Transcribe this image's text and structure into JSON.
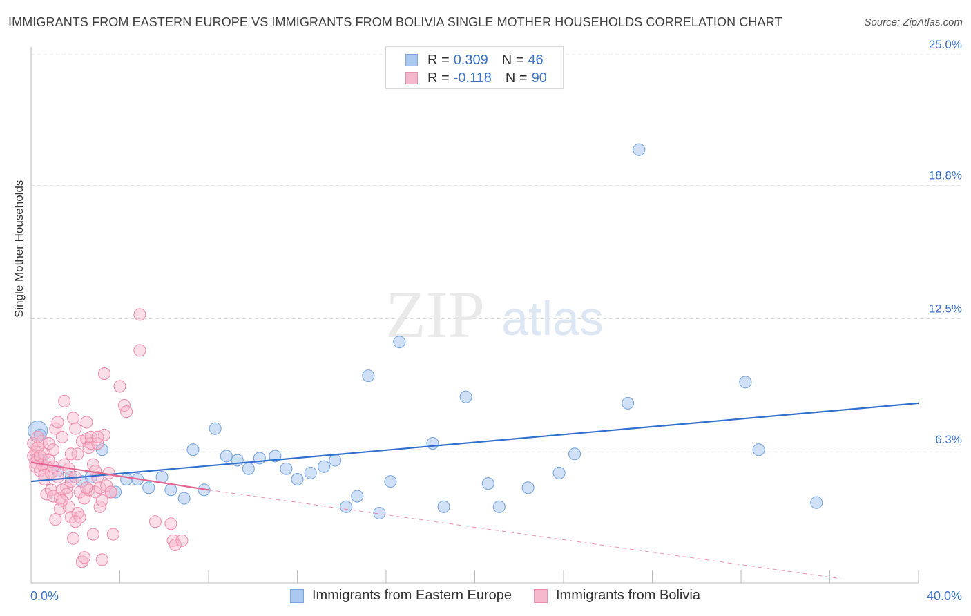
{
  "title": "IMMIGRANTS FROM EASTERN EUROPE VS IMMIGRANTS FROM BOLIVIA SINGLE MOTHER HOUSEHOLDS CORRELATION CHART",
  "source": "Source: ZipAtlas.com",
  "watermark": {
    "zip": "ZIP",
    "atlas": "atlas"
  },
  "legend": {
    "rows": [
      {
        "r_label": "R =",
        "r_value": "0.309",
        "n_label": "N =",
        "n_value": "46"
      },
      {
        "r_label": "R =",
        "r_value": "-0.118",
        "n_label": "N =",
        "n_value": "90"
      }
    ]
  },
  "bottom_legend": [
    "Immigrants from Eastern Europe",
    "Immigrants from Bolivia"
  ],
  "colors": {
    "blue_fill": "#aac8f0",
    "blue_stroke": "#7aa6e0",
    "blue_line": "#2f6fce",
    "pink_fill": "#f6b8cc",
    "pink_stroke": "#ef8fae",
    "pink_line": "#e8628f",
    "value_text": "#3b73c8",
    "grid": "#dddddd"
  },
  "chart_data": {
    "type": "scatter",
    "title": "IMMIGRANTS FROM EASTERN EUROPE VS IMMIGRANTS FROM BOLIVIA SINGLE MOTHER HOUSEHOLDS CORRELATION CHART",
    "xlabel": "",
    "ylabel": "Single Mother Households",
    "xlim": [
      0,
      40
    ],
    "ylim": [
      0,
      25.0
    ],
    "x_tick_labels": [
      "0.0%",
      "40.0%"
    ],
    "y_tick_labels": [
      "6.3%",
      "12.5%",
      "18.8%",
      "25.0%"
    ],
    "y_ticks": [
      6.3,
      12.5,
      18.8,
      25.0
    ],
    "grid": true,
    "legend_position": "top-center",
    "series": [
      {
        "name": "Immigrants from Eastern Europe",
        "trend": {
          "x": [
            0,
            40
          ],
          "y": [
            4.8,
            8.5
          ]
        },
        "points": [
          [
            0.3,
            7.2
          ],
          [
            0.4,
            7.0
          ],
          [
            0.5,
            5.8
          ],
          [
            1.2,
            5.3
          ],
          [
            1.8,
            5.0
          ],
          [
            2.3,
            4.8
          ],
          [
            2.7,
            5.0
          ],
          [
            3.2,
            6.3
          ],
          [
            3.8,
            4.3
          ],
          [
            4.3,
            4.9
          ],
          [
            4.8,
            4.9
          ],
          [
            5.3,
            4.5
          ],
          [
            5.9,
            5.0
          ],
          [
            6.3,
            4.4
          ],
          [
            6.9,
            4.0
          ],
          [
            7.3,
            6.3
          ],
          [
            7.8,
            4.4
          ],
          [
            8.3,
            7.3
          ],
          [
            8.8,
            6.0
          ],
          [
            9.3,
            5.8
          ],
          [
            9.8,
            5.4
          ],
          [
            10.3,
            5.9
          ],
          [
            11.0,
            6.0
          ],
          [
            11.5,
            5.4
          ],
          [
            12.0,
            4.9
          ],
          [
            12.6,
            5.2
          ],
          [
            13.2,
            5.5
          ],
          [
            13.7,
            5.8
          ],
          [
            14.2,
            3.6
          ],
          [
            14.7,
            4.1
          ],
          [
            15.2,
            9.8
          ],
          [
            15.7,
            3.3
          ],
          [
            16.2,
            4.8
          ],
          [
            16.6,
            11.4
          ],
          [
            18.1,
            6.6
          ],
          [
            18.6,
            3.6
          ],
          [
            19.6,
            8.8
          ],
          [
            20.6,
            4.7
          ],
          [
            21.1,
            3.6
          ],
          [
            22.4,
            4.5
          ],
          [
            23.8,
            5.2
          ],
          [
            24.5,
            6.1
          ],
          [
            26.9,
            8.5
          ],
          [
            27.4,
            20.5
          ],
          [
            32.2,
            9.5
          ],
          [
            32.8,
            6.3
          ],
          [
            35.4,
            3.8
          ]
        ]
      },
      {
        "name": "Immigrants from Bolivia",
        "trend": {
          "x": [
            0,
            8
          ],
          "y": [
            5.7,
            4.4
          ]
        },
        "trend_extension": {
          "x": [
            8,
            36.5
          ],
          "y": [
            4.4,
            0.2
          ]
        },
        "points": [
          [
            0.1,
            6.6
          ],
          [
            0.1,
            6.0
          ],
          [
            0.2,
            6.2
          ],
          [
            0.2,
            5.7
          ],
          [
            0.3,
            6.4
          ],
          [
            0.3,
            5.9
          ],
          [
            0.4,
            6.0
          ],
          [
            0.4,
            5.3
          ],
          [
            0.5,
            6.7
          ],
          [
            0.5,
            5.6
          ],
          [
            0.6,
            6.1
          ],
          [
            0.6,
            4.9
          ],
          [
            0.7,
            5.5
          ],
          [
            0.7,
            4.2
          ],
          [
            0.8,
            5.8
          ],
          [
            0.8,
            6.6
          ],
          [
            0.9,
            5.2
          ],
          [
            0.9,
            4.4
          ],
          [
            1.0,
            6.3
          ],
          [
            1.0,
            5.5
          ],
          [
            1.1,
            7.3
          ],
          [
            1.1,
            3.0
          ],
          [
            1.2,
            5.0
          ],
          [
            1.2,
            7.6
          ],
          [
            1.3,
            4.0
          ],
          [
            1.3,
            3.5
          ],
          [
            1.4,
            6.9
          ],
          [
            1.4,
            4.4
          ],
          [
            1.5,
            8.6
          ],
          [
            1.5,
            5.6
          ],
          [
            1.6,
            4.5
          ],
          [
            1.6,
            4.2
          ],
          [
            1.7,
            5.4
          ],
          [
            1.7,
            3.6
          ],
          [
            1.8,
            4.8
          ],
          [
            1.8,
            3.1
          ],
          [
            1.9,
            7.8
          ],
          [
            1.9,
            2.1
          ],
          [
            2.0,
            5.0
          ],
          [
            2.0,
            7.3
          ],
          [
            2.1,
            3.3
          ],
          [
            2.1,
            6.1
          ],
          [
            2.2,
            3.1
          ],
          [
            2.2,
            4.3
          ],
          [
            2.3,
            6.7
          ],
          [
            2.3,
            1.0
          ],
          [
            2.4,
            4.0
          ],
          [
            2.4,
            1.2
          ],
          [
            2.5,
            6.8
          ],
          [
            2.5,
            7.6
          ],
          [
            2.6,
            6.4
          ],
          [
            2.6,
            4.4
          ],
          [
            2.7,
            6.6
          ],
          [
            2.7,
            6.9
          ],
          [
            2.8,
            5.6
          ],
          [
            2.8,
            2.3
          ],
          [
            2.9,
            5.3
          ],
          [
            2.9,
            4.3
          ],
          [
            3.0,
            6.6
          ],
          [
            3.0,
            5.0
          ],
          [
            3.1,
            4.5
          ],
          [
            3.1,
            3.6
          ],
          [
            3.2,
            1.1
          ],
          [
            3.2,
            3.9
          ],
          [
            3.3,
            9.9
          ],
          [
            3.3,
            7.0
          ],
          [
            3.4,
            4.6
          ],
          [
            3.5,
            5.2
          ],
          [
            3.6,
            4.3
          ],
          [
            3.7,
            2.3
          ],
          [
            4.0,
            9.3
          ],
          [
            4.2,
            8.4
          ],
          [
            4.3,
            8.1
          ],
          [
            4.9,
            11.0
          ],
          [
            4.9,
            12.7
          ],
          [
            5.6,
            2.9
          ],
          [
            6.3,
            2.8
          ],
          [
            6.4,
            2.0
          ],
          [
            6.5,
            1.8
          ],
          [
            6.8,
            2.0
          ],
          [
            0.3,
            6.9
          ],
          [
            0.6,
            5.1
          ],
          [
            1.0,
            4.1
          ],
          [
            1.4,
            3.9
          ],
          [
            2.0,
            2.9
          ],
          [
            2.5,
            4.5
          ],
          [
            3.0,
            6.9
          ],
          [
            3.6,
            4.3
          ],
          [
            0.2,
            5.5
          ],
          [
            1.8,
            6.1
          ]
        ]
      }
    ]
  }
}
